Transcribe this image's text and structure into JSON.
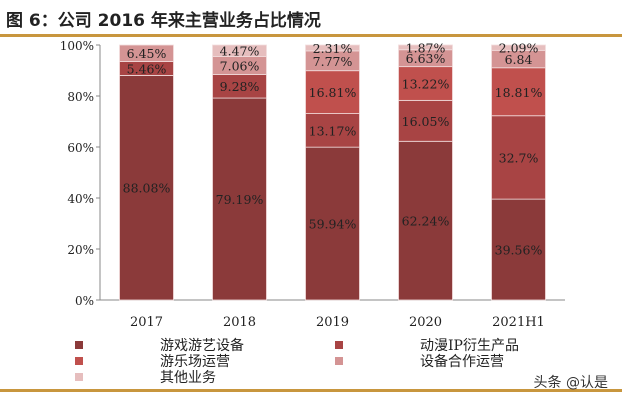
{
  "title": "图 6：公司 2016 年来主营业务占比情况",
  "watermark": "头条 @认是",
  "chart_data": {
    "type": "bar",
    "stacked": true,
    "categories": [
      "2017",
      "2018",
      "2019",
      "2020",
      "2021H1"
    ],
    "ylim": [
      0,
      100
    ],
    "yticks": [
      "0%",
      "20%",
      "40%",
      "60%",
      "80%",
      "100%"
    ],
    "legend": "bottom",
    "series": [
      {
        "name": "游戏游艺设备",
        "color": "#8b3a3a",
        "values": [
          88.08,
          79.19,
          59.94,
          62.24,
          39.56
        ],
        "labels": [
          "88.08%",
          "79.19%",
          "59.94%",
          "62.24%",
          "39.56%"
        ]
      },
      {
        "name": "动漫IP衍生产品",
        "color": "#a84444",
        "values": [
          5.46,
          9.28,
          13.17,
          16.05,
          32.7
        ],
        "labels": [
          "5.46%",
          "9.28%",
          "13.17%",
          "16.05%",
          "32.7%"
        ]
      },
      {
        "name": "游乐场运营",
        "color": "#c0504d",
        "values": [
          0,
          0,
          16.81,
          13.22,
          18.81
        ],
        "labels": [
          "",
          "",
          "16.81%",
          "13.22%",
          "18.81%"
        ]
      },
      {
        "name": "设备合作运营",
        "color": "#d49494",
        "values": [
          6.45,
          7.06,
          7.77,
          6.63,
          6.84
        ],
        "labels": [
          "6.45%",
          "7.06%",
          "7.77%",
          "6.63%",
          "6.84"
        ]
      },
      {
        "name": "其他业务",
        "color": "#e6bebe",
        "values": [
          0,
          4.47,
          2.31,
          1.87,
          2.09
        ],
        "labels": [
          "",
          "4.47%",
          "2.31%",
          "1.87%",
          "2.09%"
        ]
      }
    ]
  }
}
